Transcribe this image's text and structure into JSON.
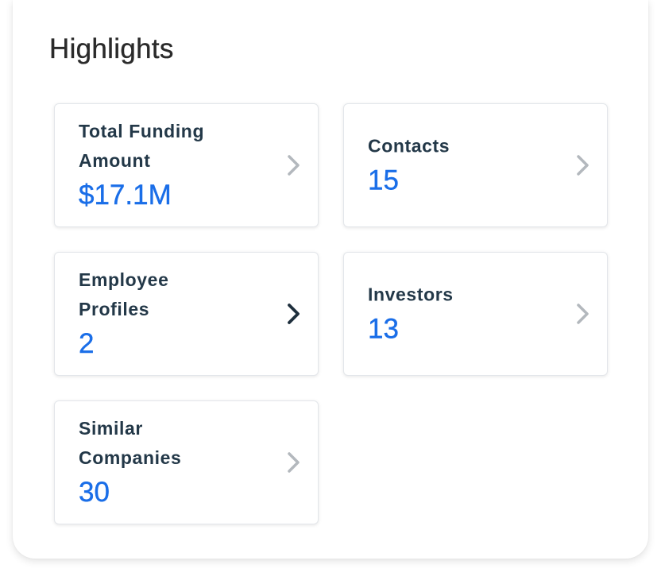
{
  "title": "Highlights",
  "cards": [
    {
      "name": "total-funding-card",
      "label_lines": [
        "Total Funding",
        "Amount"
      ],
      "value": "$17.1M",
      "chevron": "chevron-right-icon",
      "chevron_color": "#b3b8bd"
    },
    {
      "name": "contacts-card",
      "label_lines": [
        "Contacts"
      ],
      "value": "15",
      "chevron": "chevron-right-icon",
      "chevron_color": "#b3b8bd"
    },
    {
      "name": "employee-profiles-card",
      "label_lines": [
        "Employee",
        "Profiles"
      ],
      "value": "2",
      "chevron": "chevron-right-icon",
      "chevron_color": "#1e2f3d"
    },
    {
      "name": "investors-card",
      "label_lines": [
        "Investors"
      ],
      "value": "13",
      "chevron": "chevron-right-icon",
      "chevron_color": "#b3b8bd"
    },
    {
      "name": "similar-companies-card",
      "label_lines": [
        "Similar",
        "Companies"
      ],
      "value": "30",
      "chevron": "chevron-right-icon",
      "chevron_color": "#b3b8bd"
    }
  ],
  "colors": {
    "label": "#233848",
    "value": "#1a6ee8",
    "title": "#2a2a2a"
  }
}
